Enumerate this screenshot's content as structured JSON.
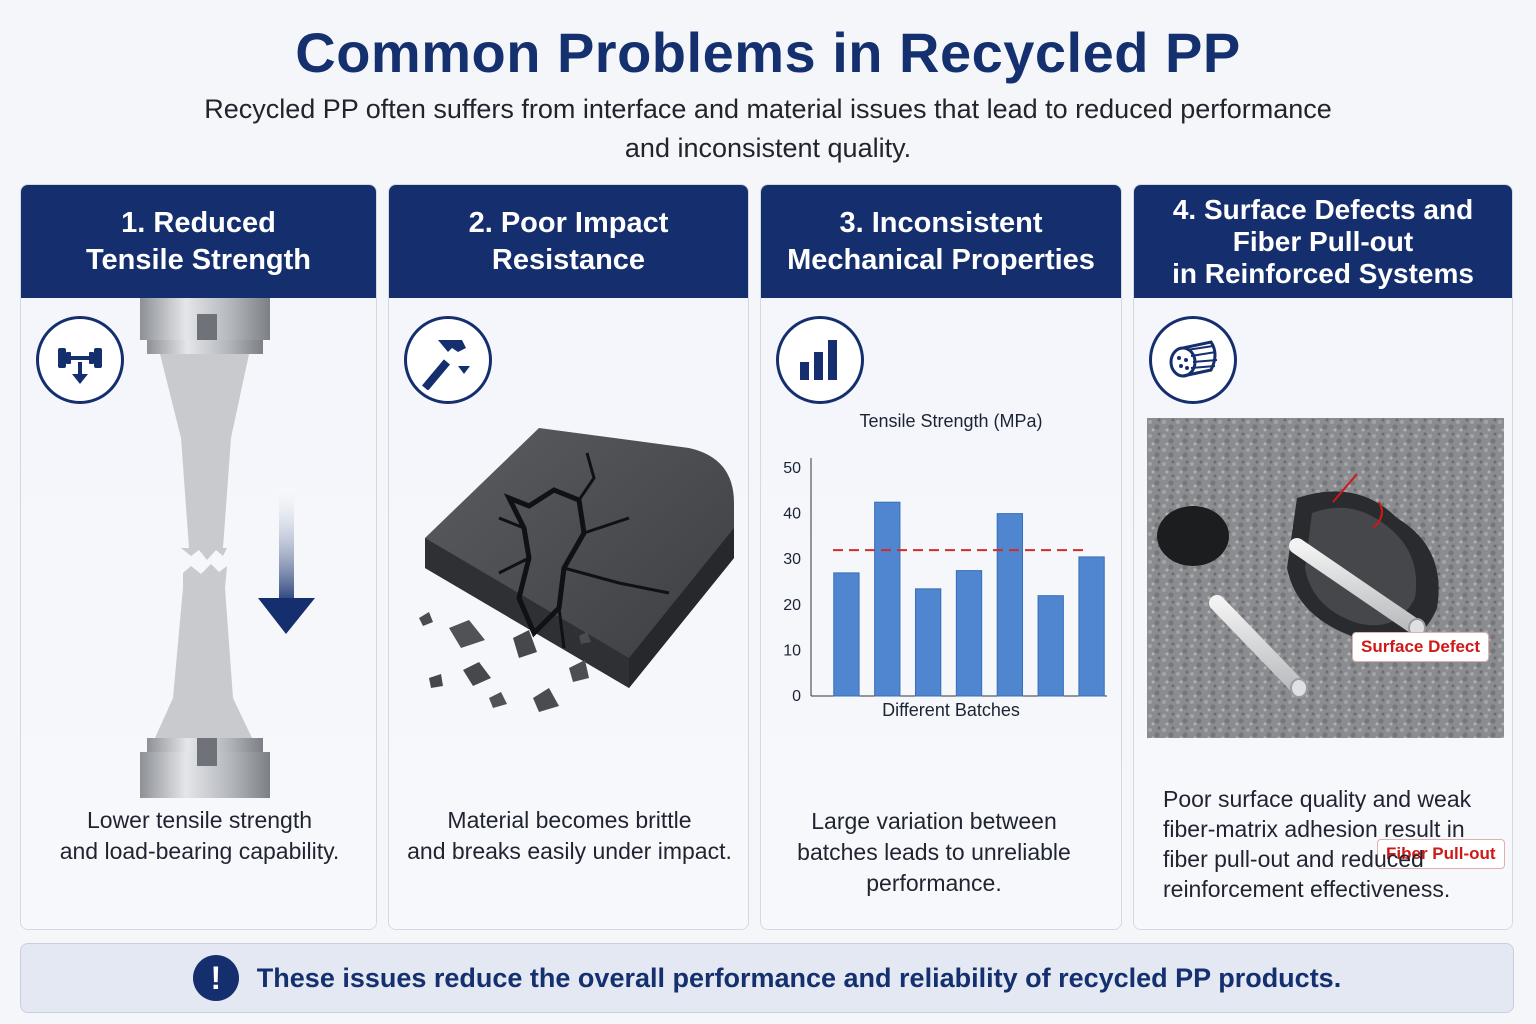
{
  "header": {
    "title": "Common Problems in Recycled PP",
    "subtitle_line1": "Recycled PP often suffers from interface and material issues that lead to reduced performance",
    "subtitle_line2": "and inconsistent quality."
  },
  "cards": [
    {
      "title_line1": "1. Reduced",
      "title_line2": "Tensile Strength",
      "icon": "dumbbell-down-arrow-icon",
      "desc_line1": "Lower tensile strength",
      "desc_line2": "and load-bearing capability."
    },
    {
      "title_line1": "2. Poor Impact",
      "title_line2": "Resistance",
      "icon": "hammer-icon",
      "desc_line1": "Material becomes brittle",
      "desc_line2": "and breaks easily under impact."
    },
    {
      "title_line1": "3. Inconsistent",
      "title_line2": "Mechanical Properties",
      "icon": "bar-chart-icon",
      "desc_line1": "Large variation between",
      "desc_line2": "batches leads to unreliable",
      "desc_line3": "performance."
    },
    {
      "title_line1": "4. Surface Defects and",
      "title_line2": "Fiber Pull-out",
      "title_line3": "in Reinforced Systems",
      "icon": "fiber-bundle-icon",
      "desc_line1": "Poor surface quality and weak",
      "desc_line2": "fiber-matrix adhesion result in",
      "desc_line3": "fiber pull-out and reduced",
      "desc_line4": "reinforcement effectiveness.",
      "callout_surface": "Surface Defect",
      "callout_fiber": "Fiber Pull-out"
    }
  ],
  "chart_data": {
    "type": "bar",
    "title": "Tensile Strength (MPa)",
    "xlabel": "Different Batches",
    "ylabel": "",
    "categories": [
      "",
      "",
      "",
      "",
      "",
      "",
      ""
    ],
    "values": [
      27,
      42.5,
      23.5,
      27.5,
      40,
      22,
      30.5
    ],
    "reference_line": 32,
    "ylim": [
      0,
      50
    ],
    "yticks": [
      0,
      10,
      20,
      30,
      40,
      50
    ],
    "grid": false,
    "colors": {
      "bar": "#4f86cf",
      "reference_line": "#d42a2a"
    }
  },
  "footer": {
    "icon": "exclamation-icon",
    "text": "These issues reduce the overall performance and reliability of recycled PP products."
  },
  "colors": {
    "navy": "#142e6e",
    "accent_red": "#d01818",
    "background": "#f5f6f9"
  }
}
